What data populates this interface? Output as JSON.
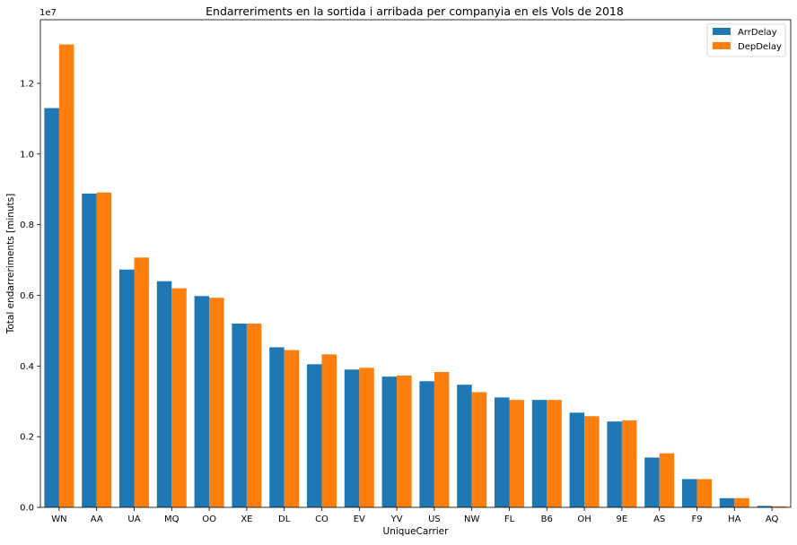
{
  "chart_data": {
    "type": "bar",
    "title": "Endarreriments en la sortida i arribada per companyia en els Vols de 2018",
    "xlabel": "UniqueCarrier",
    "ylabel": "Total endarreriments [minuts]",
    "y_offset_label": "1e7",
    "y_scale_factor": 10000000,
    "ylim": [
      0,
      1.38
    ],
    "yticks": [
      0.0,
      0.2,
      0.4,
      0.6,
      0.8,
      1.0,
      1.2
    ],
    "ytick_labels": [
      "0.0",
      "0.2",
      "0.4",
      "0.6",
      "0.8",
      "1.0",
      "1.2"
    ],
    "grid": false,
    "legend_position": "top-right",
    "categories": [
      "WN",
      "AA",
      "UA",
      "MQ",
      "OO",
      "XE",
      "DL",
      "CO",
      "EV",
      "YV",
      "US",
      "NW",
      "FL",
      "B6",
      "OH",
      "9E",
      "AS",
      "F9",
      "HA",
      "AQ"
    ],
    "series": [
      {
        "name": "ArrDelay",
        "color": "#1f77b4",
        "values": [
          1.13,
          0.888,
          0.673,
          0.64,
          0.598,
          0.52,
          0.453,
          0.405,
          0.39,
          0.37,
          0.357,
          0.347,
          0.311,
          0.304,
          0.268,
          0.243,
          0.141,
          0.08,
          0.026,
          0.004
        ]
      },
      {
        "name": "DepDelay",
        "color": "#ff7f0e",
        "values": [
          1.31,
          0.891,
          0.707,
          0.62,
          0.593,
          0.52,
          0.445,
          0.433,
          0.395,
          0.373,
          0.383,
          0.326,
          0.304,
          0.304,
          0.258,
          0.246,
          0.153,
          0.08,
          0.026,
          0.003
        ]
      }
    ]
  }
}
